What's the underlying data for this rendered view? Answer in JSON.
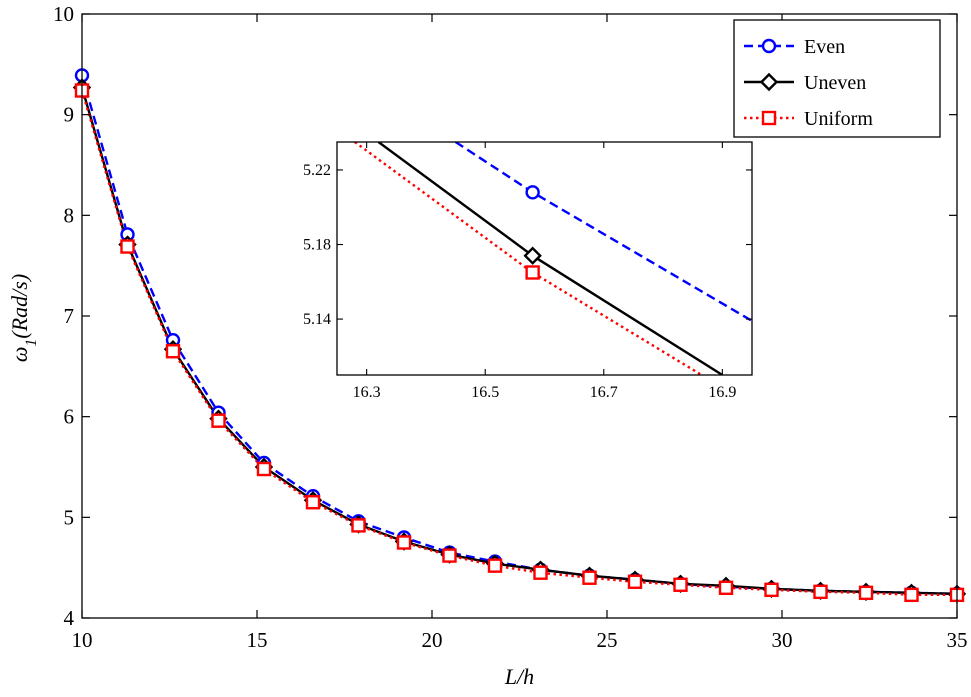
{
  "chart_data": [
    {
      "type": "line",
      "xlabel": "L/h",
      "ylabel_symbol": "ω",
      "ylabel_sub": "1",
      "ylabel_unit": "(Rad/s)",
      "xlim": [
        10,
        35
      ],
      "ylim": [
        4,
        10
      ],
      "xticks": [
        10,
        15,
        20,
        25,
        30,
        35
      ],
      "yticks": [
        4,
        5,
        6,
        7,
        8,
        9,
        10
      ],
      "x": [
        10,
        11.3,
        12.6,
        13.9,
        15.2,
        16.6,
        17.9,
        19.2,
        20.5,
        21.8,
        23.1,
        24.5,
        25.8,
        27.1,
        28.4,
        29.7,
        31.1,
        32.4,
        33.7,
        35
      ],
      "series": [
        {
          "name": "Even",
          "color": "#0000ff",
          "dash": "dashed",
          "marker": "circle",
          "values": [
            9.39,
            7.81,
            6.76,
            6.04,
            5.54,
            5.21,
            4.96,
            4.8,
            4.65,
            4.56,
            4.48,
            4.42,
            4.38,
            4.34,
            4.31,
            4.29,
            4.27,
            4.26,
            4.25,
            4.24
          ]
        },
        {
          "name": "Uneven",
          "color": "#000000",
          "dash": "solid",
          "marker": "diamond",
          "values": [
            9.27,
            7.71,
            6.67,
            5.98,
            5.5,
            5.17,
            4.93,
            4.76,
            4.63,
            4.54,
            4.48,
            4.42,
            4.38,
            4.34,
            4.32,
            4.29,
            4.27,
            4.26,
            4.25,
            4.24
          ]
        },
        {
          "name": "Uniform",
          "color": "#ff0000",
          "dash": "dotted",
          "marker": "square",
          "values": [
            9.24,
            7.69,
            6.65,
            5.96,
            5.48,
            5.15,
            4.92,
            4.75,
            4.62,
            4.52,
            4.45,
            4.4,
            4.36,
            4.33,
            4.3,
            4.28,
            4.26,
            4.25,
            4.23,
            4.23
          ]
        }
      ],
      "legend": "top-right",
      "grid": false
    },
    {
      "type": "line",
      "inset": true,
      "xlim": [
        16.25,
        16.95
      ],
      "ylim": [
        5.11,
        5.235
      ],
      "xticks": [
        "16.3",
        "16.5",
        "16.7",
        "16.9"
      ],
      "yticks": [
        "5.14",
        "5.18",
        "5.22"
      ],
      "series": [
        {
          "name": "Even",
          "color": "#0000ff",
          "dash": "dashed",
          "marker": "circle",
          "line": [
            [
              16.45,
              5.235
            ],
            [
              16.58,
              5.208
            ],
            [
              16.95,
              5.139
            ]
          ],
          "marker_points": [
            [
              16.58,
              5.208
            ]
          ]
        },
        {
          "name": "Uneven",
          "color": "#000000",
          "dash": "solid",
          "marker": "diamond",
          "line": [
            [
              16.32,
              5.235
            ],
            [
              16.58,
              5.174
            ],
            [
              16.9,
              5.11
            ]
          ],
          "marker_points": [
            [
              16.58,
              5.174
            ]
          ]
        },
        {
          "name": "Uniform",
          "color": "#ff0000",
          "dash": "dotted",
          "marker": "square",
          "line": [
            [
              16.28,
              5.235
            ],
            [
              16.58,
              5.165
            ],
            [
              16.865,
              5.11
            ]
          ],
          "marker_points": [
            [
              16.58,
              5.165
            ]
          ]
        }
      ],
      "grid": false
    }
  ]
}
